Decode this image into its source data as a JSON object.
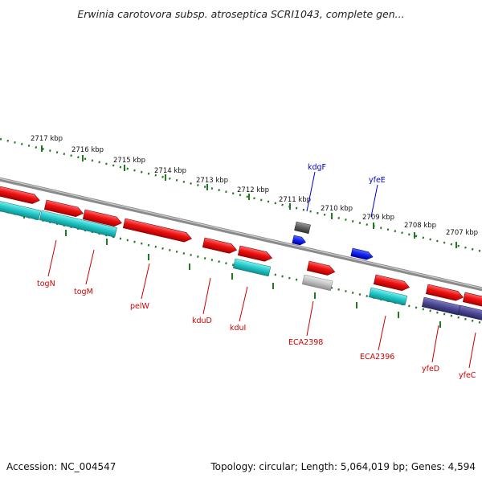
{
  "title": "Erwinia carotovora subsp. atroseptica SCRI1043, complete gen...",
  "footer": {
    "accession": "Accession: NC_004547",
    "summary": "Topology: circular; Length: 5,064,019 bp; Genes: 4,594"
  },
  "colors": {
    "forward_gene": "#ee1111",
    "reverse_gene_label": "#cc0000",
    "forward_gene_label": "#0000cc",
    "blue_gene": "#1122ee",
    "cds_cyan": "#22c6c6",
    "cds_purple": "#4a4890",
    "pseudo_gray": "#bdbdbd",
    "dark_gray": "#666666",
    "backbone": "#8a8a8a",
    "ruler": "#1f7a1f"
  },
  "ruler_labels": [
    "2717 kbp",
    "2716 kbp",
    "2715 kbp",
    "2714 kbp",
    "2713 kbp",
    "2712 kbp",
    "2711 kbp",
    "2710 kbp",
    "2709 kbp",
    "2708 kbp",
    "2707 kbp"
  ],
  "gene_labels_top": [
    "kdgF",
    "yfeE"
  ],
  "gene_labels_bottom": [
    "togN",
    "togM",
    "pelW",
    "kduD",
    "kduI",
    "ECA2398",
    "ECA2396",
    "yfeD",
    "yfeC"
  ]
}
